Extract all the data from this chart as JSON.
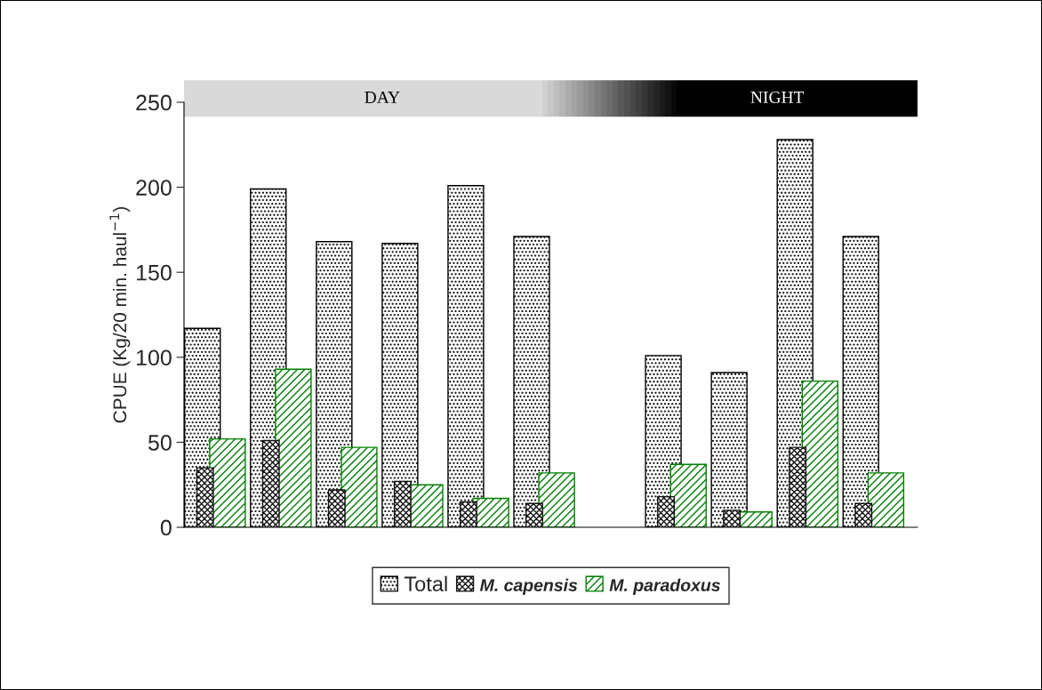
{
  "chart_data": {
    "type": "bar",
    "ylabel": "CPUE (Kg/20 min. haul$^{−1}$)",
    "categories": [
      null,
      null,
      null,
      null,
      null,
      null,
      null,
      null,
      null,
      null,
      null
    ],
    "series": [
      {
        "name": "Total",
        "color": "#000000",
        "values": [
          117,
          199,
          168,
          167,
          201,
          171,
          null,
          101,
          91,
          228,
          171
        ]
      },
      {
        "name": "M. capensis",
        "color": "#111111",
        "values": [
          35,
          51,
          22,
          27,
          15,
          14,
          null,
          18,
          10,
          47,
          14
        ]
      },
      {
        "name": "M. paradoxus",
        "color": "#008000",
        "values": [
          52,
          93,
          47,
          25,
          17,
          32,
          null,
          37,
          9,
          86,
          32
        ]
      }
    ],
    "ylim": [
      0,
      250
    ],
    "yticks": [
      0,
      50,
      100,
      150,
      200,
      250
    ],
    "tick_labels": "y",
    "grid": false,
    "legend": "bottom",
    "annotations": [
      "DAY",
      "NIGHT"
    ]
  }
}
